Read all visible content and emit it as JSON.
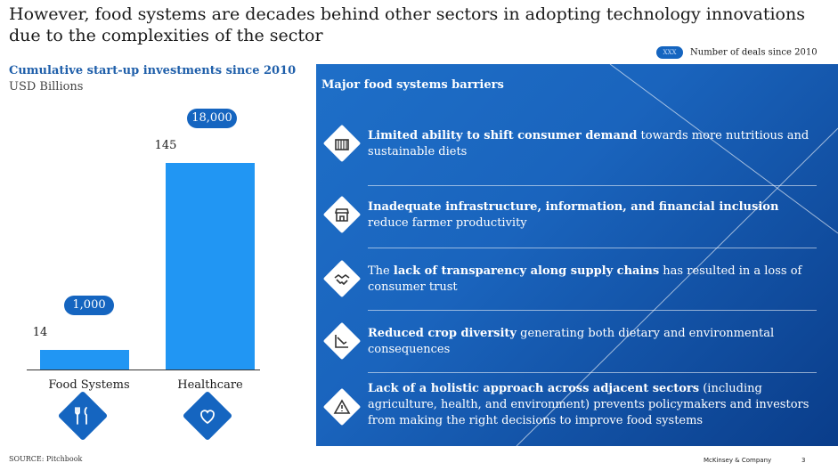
{
  "slide": {
    "title": "However, food systems are decades behind other sectors in adopting technology innovations due to the complexities of the sector",
    "legend_pill": "XXX",
    "legend_text": "Number of deals since 2010",
    "source": "SOURCE: Pitchbook",
    "brand": "McKinsey & Company",
    "page_number": "3"
  },
  "chart_data": {
    "type": "bar",
    "title": "Cumulative start-up investments since 2010",
    "ylabel": "USD Billions",
    "categories": [
      "Food Systems",
      "Healthcare"
    ],
    "values": [
      14,
      145
    ],
    "value_labels": [
      "14",
      "145"
    ],
    "deal_counts": [
      "1,000",
      "18,000"
    ],
    "ylim": [
      0,
      150
    ],
    "icons": [
      "fork-knife-icon",
      "heart-icon"
    ],
    "colors": {
      "bar": "#2196f3",
      "deal_badge": "#1565c0"
    }
  },
  "barriers": {
    "title": "Major food systems barriers",
    "items": [
      {
        "icon": "shopping-cart-icon",
        "bold": "Limited ability to shift consumer demand",
        "rest": " towards more nutritious and sustainable diets"
      },
      {
        "icon": "storefront-icon",
        "bold": "Inadequate infrastructure, information, and financial inclusion",
        "rest": " reduce farmer productivity"
      },
      {
        "icon": "handshake-icon",
        "pre": "The ",
        "bold": "lack of transparency along supply chains",
        "rest": " has resulted in a loss of consumer trust"
      },
      {
        "icon": "declining-chart-icon",
        "bold": "Reduced crop diversity",
        "rest": " generating both dietary and environmental consequences"
      },
      {
        "icon": "warning-icon",
        "bold": "Lack of a holistic approach across adjacent sectors",
        "rest": " (including agriculture, health, and environment) prevents policymakers and investors from making the right decisions to improve food systems"
      }
    ]
  }
}
